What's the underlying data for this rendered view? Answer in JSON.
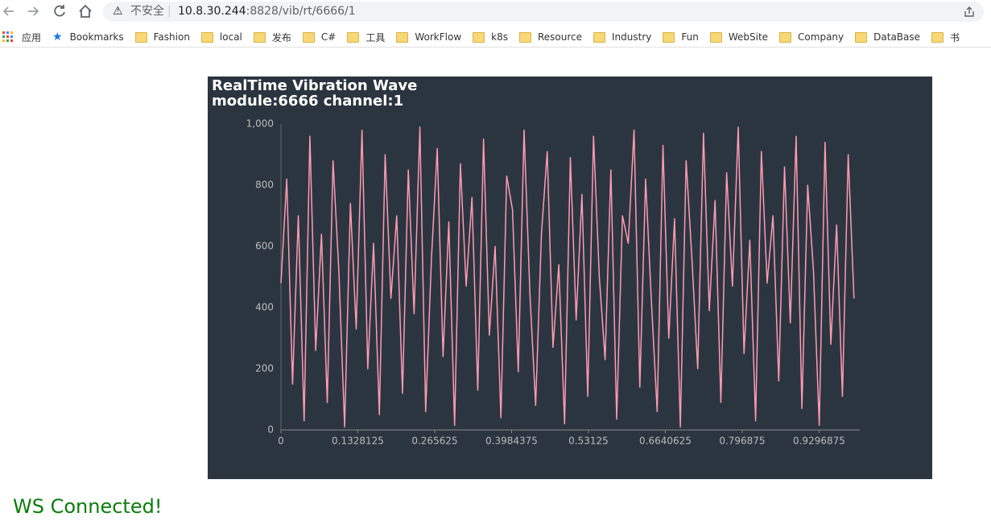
{
  "browser": {
    "url_warning": "不安全",
    "url_host": "10.8.30.244",
    "url_path": ":8828/vib/rt/6666/1",
    "apps": "应用",
    "bookmarks": [
      "Bookmarks",
      "Fashion",
      "local",
      "发布",
      "C#",
      "工具",
      "WorkFlow",
      "k8s",
      "Resource",
      "Industry",
      "Fun",
      "WebSite",
      "Company",
      "DataBase",
      "书"
    ]
  },
  "chart_data": {
    "type": "line",
    "title": "RealTime Vibration Wave",
    "subtitle": "module:6666 channel:1",
    "x": [
      0,
      0.01,
      0.02,
      0.03,
      0.04,
      0.05,
      0.06,
      0.07,
      0.08,
      0.09,
      0.1,
      0.11,
      0.12,
      0.13,
      0.14,
      0.15,
      0.16,
      0.17,
      0.18,
      0.19,
      0.2,
      0.21,
      0.22,
      0.23,
      0.24,
      0.25,
      0.26,
      0.27,
      0.28,
      0.29,
      0.3,
      0.31,
      0.32,
      0.33,
      0.34,
      0.35,
      0.36,
      0.37,
      0.38,
      0.39,
      0.4,
      0.41,
      0.42,
      0.43,
      0.44,
      0.45,
      0.46,
      0.47,
      0.48,
      0.49,
      0.5,
      0.51,
      0.52,
      0.53,
      0.54,
      0.55,
      0.56,
      0.57,
      0.58,
      0.59,
      0.6,
      0.61,
      0.62,
      0.63,
      0.64,
      0.65,
      0.66,
      0.67,
      0.68,
      0.69,
      0.7,
      0.71,
      0.72,
      0.73,
      0.74,
      0.75,
      0.76,
      0.77,
      0.78,
      0.79,
      0.8,
      0.81,
      0.82,
      0.83,
      0.84,
      0.85,
      0.86,
      0.87,
      0.88,
      0.89,
      0.9,
      0.91,
      0.92,
      0.93,
      0.94,
      0.95,
      0.96,
      0.97,
      0.98,
      0.99
    ],
    "values": [
      480,
      820,
      150,
      700,
      30,
      960,
      260,
      640,
      90,
      880,
      520,
      10,
      740,
      330,
      980,
      200,
      610,
      50,
      900,
      430,
      700,
      120,
      850,
      380,
      990,
      60,
      560,
      920,
      240,
      680,
      15,
      870,
      470,
      760,
      130,
      950,
      310,
      600,
      40,
      830,
      720,
      190,
      980,
      450,
      80,
      640,
      910,
      270,
      540,
      20,
      890,
      360,
      770,
      110,
      960,
      500,
      230,
      850,
      35,
      700,
      610,
      980,
      140,
      820,
      420,
      60,
      930,
      300,
      690,
      10,
      880,
      560,
      200,
      970,
      390,
      750,
      90,
      840,
      470,
      990,
      250,
      620,
      30,
      910,
      480,
      700,
      160,
      860,
      350,
      960,
      70,
      800,
      520,
      15,
      940,
      280,
      670,
      110,
      900,
      430
    ],
    "color": "#ff9bb0",
    "xlim": [
      0,
      1
    ],
    "xticks": [
      0,
      0.1328125,
      0.265625,
      0.3984375,
      0.53125,
      0.6640625,
      0.796875,
      0.9296875
    ],
    "ylim": [
      0,
      1000
    ],
    "yticks": [
      0,
      200,
      400,
      600,
      800,
      {
        "value": 1000,
        "label": "1,000"
      }
    ],
    "grid": false
  },
  "status": "WS Connected!"
}
